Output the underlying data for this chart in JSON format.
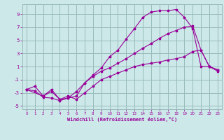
{
  "xlabel": "Windchill (Refroidissement éolien,°C)",
  "bg_color": "#cce8e8",
  "grid_color": "#99bbbb",
  "line_color": "#990099",
  "xlim": [
    -0.5,
    23.5
  ],
  "ylim": [
    -5.5,
    10.5
  ],
  "xticks": [
    0,
    1,
    2,
    3,
    4,
    5,
    6,
    7,
    8,
    9,
    10,
    11,
    12,
    13,
    14,
    15,
    16,
    17,
    18,
    19,
    20,
    21,
    22,
    23
  ],
  "yticks": [
    -5,
    -3,
    -1,
    1,
    3,
    5,
    7,
    9
  ],
  "line1_x": [
    0,
    1,
    2,
    3,
    4,
    5,
    6,
    7,
    8,
    9,
    10,
    11,
    12,
    13,
    14,
    15,
    16,
    17,
    18,
    19,
    20,
    21,
    22,
    23
  ],
  "line1_y": [
    -2.5,
    -2.7,
    -3.7,
    -3.8,
    -4.2,
    -3.8,
    -3.5,
    -1.5,
    -0.3,
    0.8,
    2.5,
    3.5,
    5.2,
    6.8,
    8.5,
    9.3,
    9.5,
    9.5,
    9.7,
    8.5,
    6.8,
    1.0,
    1.0,
    0.5
  ],
  "line2_x": [
    0,
    2,
    3,
    4,
    5,
    6,
    7,
    8,
    9,
    10,
    11,
    12,
    13,
    14,
    15,
    16,
    17,
    18,
    19,
    20,
    21,
    22,
    23
  ],
  "line2_y": [
    -2.5,
    -3.5,
    -2.8,
    -4.0,
    -3.8,
    -2.8,
    -1.5,
    -0.5,
    0.3,
    0.8,
    1.5,
    2.2,
    3.0,
    3.8,
    4.5,
    5.3,
    6.0,
    6.5,
    7.0,
    7.2,
    3.5,
    1.0,
    0.5
  ],
  "line3_x": [
    0,
    1,
    2,
    3,
    4,
    5,
    6,
    7,
    8,
    9,
    10,
    11,
    12,
    13,
    14,
    15,
    16,
    17,
    18,
    19,
    20,
    21,
    22,
    23
  ],
  "line3_y": [
    -2.5,
    -2.0,
    -3.5,
    -2.5,
    -4.0,
    -3.5,
    -4.0,
    -3.0,
    -2.0,
    -1.0,
    -0.5,
    0.0,
    0.5,
    1.0,
    1.3,
    1.5,
    1.7,
    2.0,
    2.2,
    2.5,
    3.3,
    3.5,
    1.0,
    0.3
  ]
}
